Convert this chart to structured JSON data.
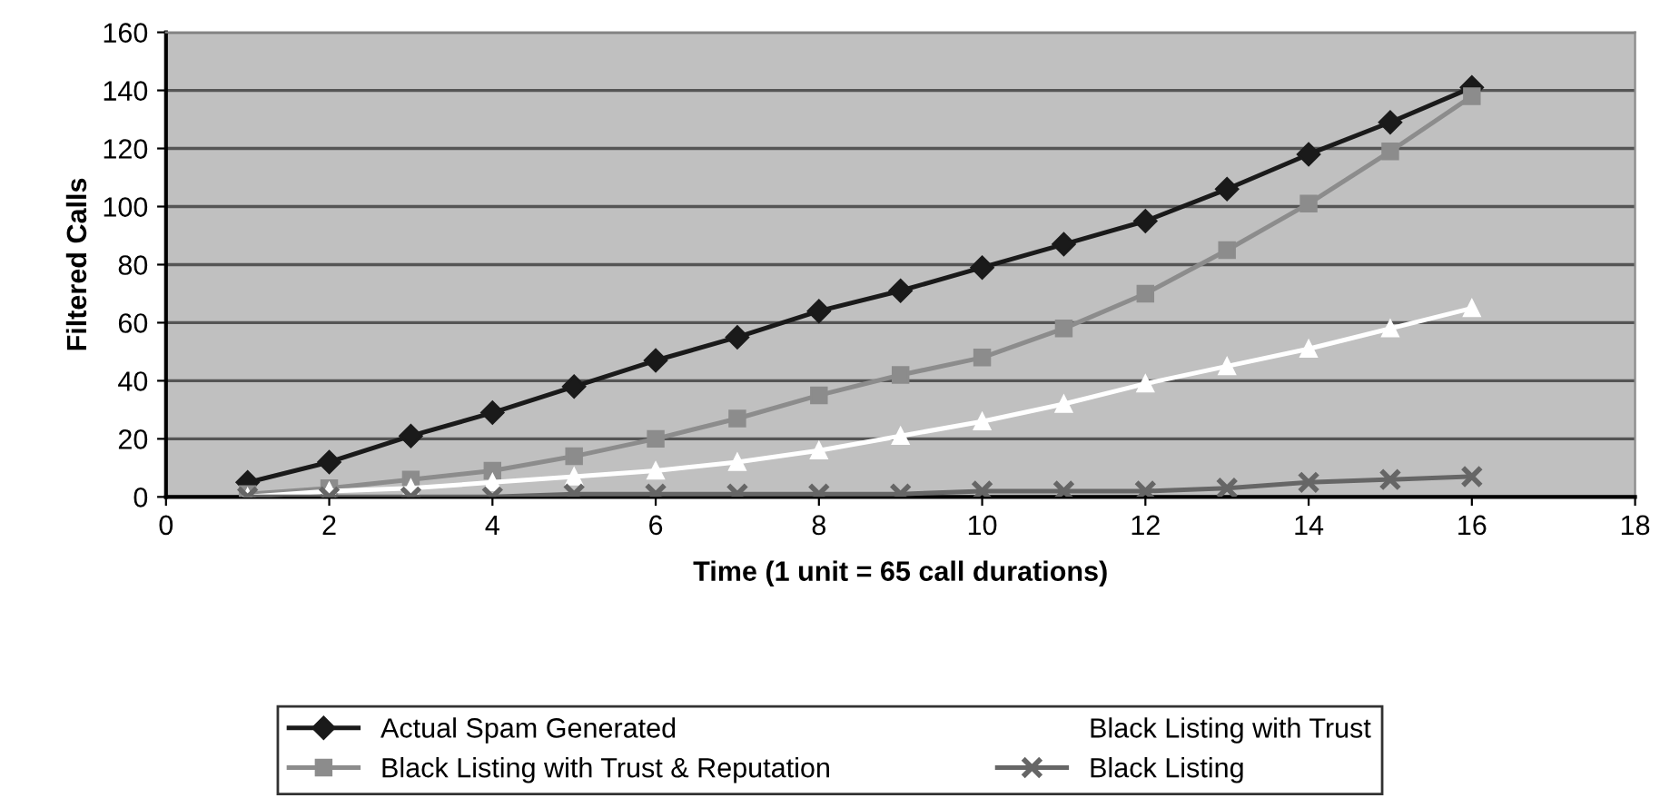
{
  "chart_data": {
    "type": "line",
    "xlabel": "Time (1 unit = 65 call durations)",
    "ylabel": "Filtered Calls",
    "x": [
      1,
      2,
      3,
      4,
      5,
      6,
      7,
      8,
      9,
      10,
      11,
      12,
      13,
      14,
      15,
      16
    ],
    "series": [
      {
        "name": "Actual Spam Generated",
        "color": "#1a1a1a",
        "marker": "diamond",
        "values": [
          5,
          12,
          21,
          29,
          38,
          47,
          55,
          64,
          71,
          79,
          87,
          95,
          106,
          118,
          129,
          141
        ]
      },
      {
        "name": "Black Listing with Trust & Reputation",
        "color": "#8c8c8c",
        "marker": "square",
        "values": [
          1,
          3,
          6,
          9,
          14,
          20,
          27,
          35,
          42,
          48,
          58,
          70,
          85,
          101,
          119,
          138
        ]
      },
      {
        "name": "Black Listing with Trust",
        "color": "#ffffff",
        "marker": "triangle",
        "values": [
          0,
          2,
          3,
          5,
          7,
          9,
          12,
          16,
          21,
          26,
          32,
          39,
          45,
          51,
          58,
          65
        ]
      },
      {
        "name": "Black Listing",
        "color": "#666666",
        "marker": "cross",
        "values": [
          0,
          0,
          0,
          0,
          1,
          1,
          1,
          1,
          1,
          2,
          2,
          2,
          3,
          5,
          6,
          7
        ]
      }
    ],
    "xlim": [
      0,
      18
    ],
    "xticks": [
      0,
      2,
      4,
      6,
      8,
      10,
      12,
      14,
      16,
      18
    ],
    "ylim": [
      0,
      160
    ],
    "yticks": [
      0,
      20,
      40,
      60,
      80,
      100,
      120,
      140,
      160
    ],
    "grid": "y",
    "legend": "bottom"
  }
}
